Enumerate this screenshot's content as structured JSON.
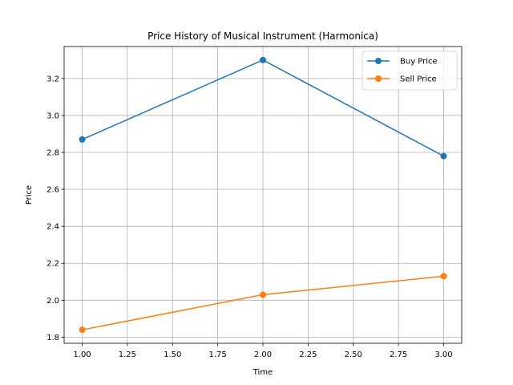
{
  "chart_data": {
    "type": "line",
    "title": "Price History of Musical Instrument (Harmonica)",
    "xlabel": "Time",
    "ylabel": "Price",
    "x": [
      1,
      2,
      3
    ],
    "series": [
      {
        "name": "Buy Price",
        "values": [
          2.87,
          3.3,
          2.78
        ],
        "color": "#1f77b4"
      },
      {
        "name": "Sell Price",
        "values": [
          1.84,
          2.03,
          2.13
        ],
        "color": "#ff7f0e"
      }
    ],
    "xlim": [
      0.9,
      3.1
    ],
    "ylim": [
      1.767,
      3.373
    ],
    "xticks": [
      1.0,
      1.25,
      1.5,
      1.75,
      2.0,
      2.25,
      2.5,
      2.75,
      3.0
    ],
    "yticks": [
      1.8,
      2.0,
      2.2,
      2.4,
      2.6,
      2.8,
      3.0,
      3.2
    ],
    "tick_decimals": {
      "x": 2,
      "y": 1
    },
    "grid": true,
    "legend": "upper-right"
  }
}
